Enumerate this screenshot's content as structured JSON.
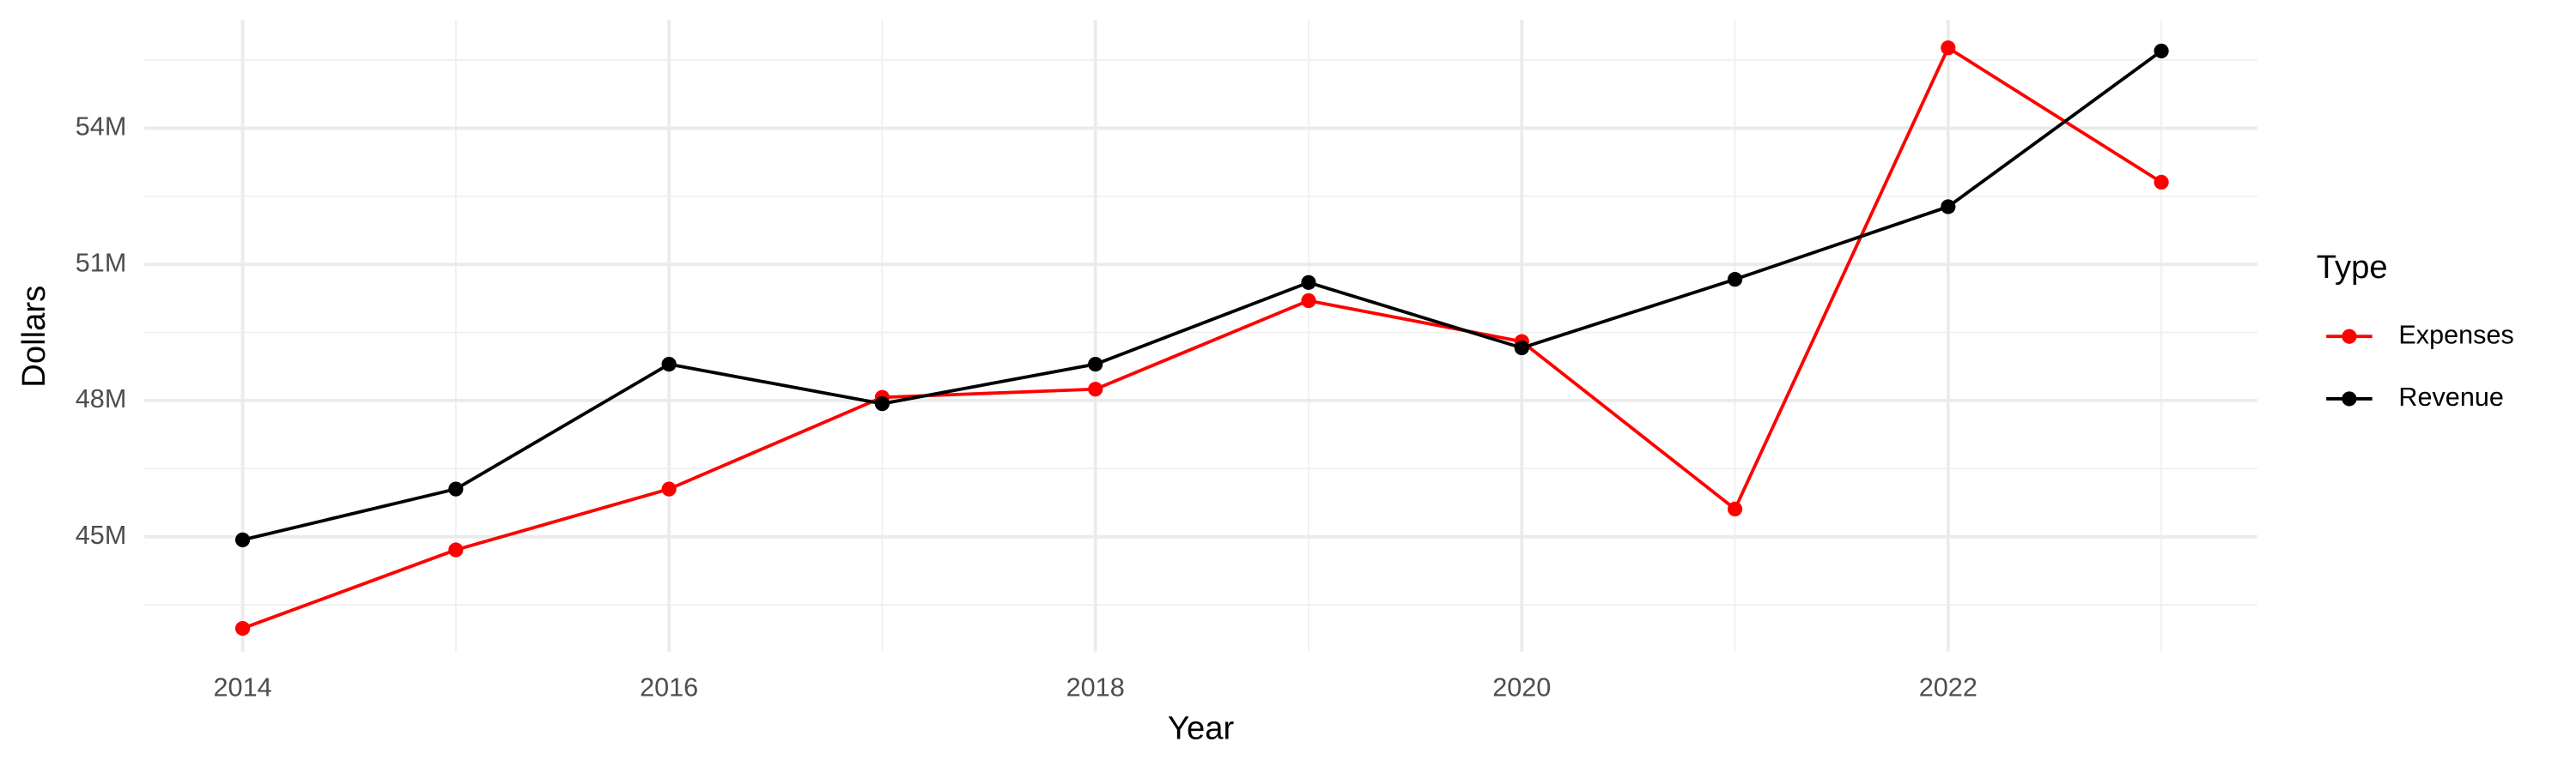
{
  "chart_data": {
    "type": "line",
    "x_label": "Year",
    "y_label": "Dollars",
    "legend_title": "Type",
    "legend_position": "right",
    "grid": true,
    "x": [
      2014,
      2015,
      2016,
      2017,
      2018,
      2019,
      2020,
      2021,
      2022,
      2023
    ],
    "series": [
      {
        "name": "Expenses",
        "color": "#ff0000",
        "values": [
          42980000,
          44710000,
          46050000,
          48070000,
          48250000,
          50200000,
          49300000,
          45610000,
          55770000,
          52810000
        ]
      },
      {
        "name": "Revenue",
        "color": "#000000",
        "values": [
          44930000,
          46050000,
          48800000,
          47930000,
          48800000,
          50600000,
          49160000,
          50670000,
          52270000,
          55700000
        ]
      }
    ],
    "xlim": [
      2013.54,
      2023.45
    ],
    "xticks": [
      2014,
      2016,
      2018,
      2020,
      2022
    ],
    "ylim": [
      42470000,
      56390000
    ],
    "yticks": [
      {
        "value": 45000000,
        "label": "45M"
      },
      {
        "value": 48000000,
        "label": "48M"
      },
      {
        "value": 51000000,
        "label": "51M"
      },
      {
        "value": 54000000,
        "label": "54M"
      }
    ]
  }
}
